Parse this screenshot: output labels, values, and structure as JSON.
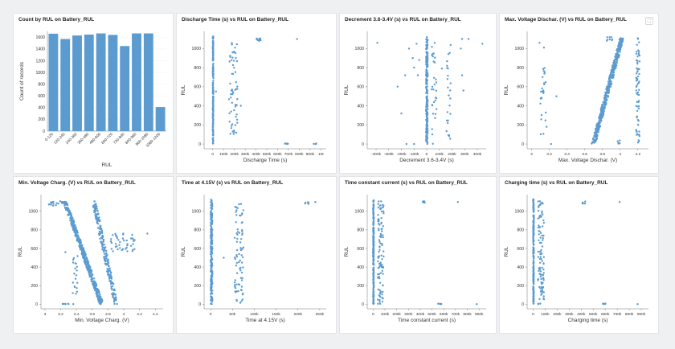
{
  "colors": {
    "mark": "#5b9bd0",
    "bar": "#5b9bd0",
    "axis": "#777777",
    "text": "#333333"
  },
  "ui": {
    "expand_icon": "expand-icon"
  },
  "chart_data": [
    {
      "type": "bar",
      "title": "Count by RUL on Battery_RUL",
      "xlabel": "RUL",
      "ylabel": "Count of records",
      "categories": [
        "0-120",
        "120-240",
        "240-360",
        "360-480",
        "480-600",
        "600-720",
        "720-840",
        "840-960",
        "960-1080",
        "1080-1200"
      ],
      "values": [
        1660,
        1570,
        1630,
        1645,
        1665,
        1640,
        1450,
        1665,
        1665,
        410
      ],
      "ylim": [
        0,
        1700
      ],
      "yticks": [
        0,
        200,
        400,
        600,
        800,
        1000,
        1200,
        1400,
        1600
      ]
    },
    {
      "type": "scatter",
      "title": "Discharge Time (s) vs RUL on Battery_RUL",
      "xlabel": "Discharge Time (s)",
      "ylabel": "RUL",
      "xlim": [
        -80000,
        1050000
      ],
      "ylim": [
        -50,
        1180
      ],
      "xticks": [
        0,
        100000,
        200000,
        300000,
        400000,
        500000,
        600000,
        700000,
        800000,
        900000,
        1000000
      ],
      "xtick_labels": [
        "0",
        "100k",
        "200k",
        "300k",
        "400k",
        "500k",
        "600k",
        "700k",
        "800k",
        "900k",
        "1M"
      ],
      "yticks": [
        0,
        200,
        400,
        600,
        800,
        1000
      ],
      "clusters": [
        {
          "x": [
            0,
            6000
          ],
          "y": [
            0,
            1130
          ],
          "n": 200
        },
        {
          "x": [
            150000,
            230000
          ],
          "y": [
            100,
            1080
          ],
          "n": 60
        },
        {
          "x": [
            400000,
            450000
          ],
          "y": [
            1080,
            1110
          ],
          "n": 10
        },
        {
          "x": [
            660000,
            700000
          ],
          "y": [
            0,
            5
          ],
          "n": 6
        },
        {
          "x": [
            930000,
            960000
          ],
          "y": [
            0,
            5
          ],
          "n": 4
        }
      ],
      "points": [
        [
          780000,
          1100
        ],
        [
          30000,
          550
        ],
        [
          260000,
          400
        ],
        [
          170000,
          340
        ]
      ]
    },
    {
      "type": "scatter",
      "title": "Decrement 3.6-3.4V (s) vs RUL on Battery_RUL",
      "xlabel": "Decrement 3.6-3.4V (s)",
      "ylabel": "RUL",
      "xlim": [
        -470000,
        470000
      ],
      "ylim": [
        -50,
        1180
      ],
      "xticks": [
        -400000,
        -300000,
        -200000,
        -100000,
        0,
        100000,
        200000,
        300000,
        400000
      ],
      "xtick_labels": [
        "-400k",
        "-300k",
        "-200k",
        "-100k",
        "0",
        "100k",
        "200k",
        "300k",
        "400k"
      ],
      "yticks": [
        0,
        200,
        400,
        600,
        800,
        1000
      ],
      "clusters": [
        {
          "x": [
            -5000,
            8000
          ],
          "y": [
            0,
            1130
          ],
          "n": 220
        },
        {
          "x": [
            40000,
            80000
          ],
          "y": [
            0,
            1100
          ],
          "n": 30
        },
        {
          "x": [
            150000,
            190000
          ],
          "y": [
            0,
            1100
          ],
          "n": 25
        }
      ],
      "points": [
        [
          -390000,
          1060
        ],
        [
          -140000,
          1000
        ],
        [
          -110000,
          900
        ],
        [
          -100000,
          800
        ],
        [
          -70000,
          720
        ],
        [
          -60000,
          880
        ],
        [
          -80000,
          1050
        ],
        [
          -230000,
          600
        ],
        [
          -200000,
          320
        ],
        [
          -160000,
          0
        ],
        [
          -100000,
          0
        ],
        [
          120000,
          790
        ],
        [
          270000,
          1000
        ],
        [
          280000,
          720
        ],
        [
          290000,
          560
        ],
        [
          330000,
          1100
        ],
        [
          440000,
          1050
        ],
        [
          280000,
          1100
        ],
        [
          -170000,
          720
        ]
      ]
    },
    {
      "type": "scatter",
      "title": "Max. Voltage Dischar. (V) vs RUL on Battery_RUL",
      "xlabel": "Max. Voltage Dischar. (V)",
      "ylabel": "RUL",
      "xlim": [
        2.95,
        4.32
      ],
      "ylim": [
        -50,
        1180
      ],
      "xticks": [
        3,
        3.2,
        3.4,
        3.6,
        3.8,
        4,
        4.2
      ],
      "xtick_labels": [
        "3",
        "3.2",
        "3.4",
        "3.6",
        "3.8",
        "4",
        "4.2"
      ],
      "yticks": [
        0,
        200,
        400,
        600,
        800,
        1000
      ],
      "bands": [
        {
          "x0": 3.7,
          "y0": 0,
          "x1": 4.02,
          "y1": 1110,
          "w": 0.045,
          "n": 420
        }
      ],
      "clusters": [
        {
          "x": [
            4.18,
            4.22
          ],
          "y": [
            0,
            1110
          ],
          "n": 70
        },
        {
          "x": [
            3.1,
            3.16
          ],
          "y": [
            100,
            800
          ],
          "n": 25
        },
        {
          "x": [
            3.85,
            3.92
          ],
          "y": [
            1080,
            1120
          ],
          "n": 8
        },
        {
          "x": [
            3.97,
            4.0
          ],
          "y": [
            0,
            40
          ],
          "n": 6
        }
      ],
      "points": [
        [
          3.09,
          1060
        ],
        [
          3.14,
          1010
        ],
        [
          3.22,
          0
        ],
        [
          3.17,
          180
        ],
        [
          3.28,
          500
        ],
        [
          3.16,
          330
        ]
      ]
    },
    {
      "type": "scatter",
      "title": "Min. Voltage Charg. (V) vs RUL on Battery_RUL",
      "xlabel": "Min. Voltage Charg. (V)",
      "ylabel": "RUL",
      "xlim": [
        2.95,
        4.5
      ],
      "ylim": [
        -50,
        1180
      ],
      "xticks": [
        3,
        3.2,
        3.4,
        3.6,
        3.8,
        4,
        4.2,
        4.4
      ],
      "xtick_labels": [
        "3",
        "3.2",
        "3.4",
        "3.6",
        "3.8",
        "4",
        "4.2",
        "4.4"
      ],
      "yticks": [
        0,
        200,
        400,
        600,
        800,
        1000
      ],
      "bands": [
        {
          "x0": 3.25,
          "y0": 1110,
          "x1": 3.72,
          "y1": 0,
          "w": 0.05,
          "n": 430
        },
        {
          "x0": 3.62,
          "y0": 1110,
          "x1": 3.9,
          "y1": 0,
          "w": 0.05,
          "n": 200
        }
      ],
      "clusters": [
        {
          "x": [
            3.05,
            3.25
          ],
          "y": [
            1060,
            1110
          ],
          "n": 20
        },
        {
          "x": [
            3.82,
            4.15
          ],
          "y": [
            560,
            760
          ],
          "n": 40
        },
        {
          "x": [
            3.35,
            3.42
          ],
          "y": [
            100,
            520
          ],
          "n": 20
        },
        {
          "x": [
            3.22,
            3.3
          ],
          "y": [
            0,
            5
          ],
          "n": 6
        }
      ],
      "points": [
        [
          4.3,
          760
        ],
        [
          3.9,
          650
        ],
        [
          4.12,
          700
        ],
        [
          3.26,
          560
        ],
        [
          3.45,
          590
        ],
        [
          3.36,
          0
        ]
      ]
    },
    {
      "type": "scatter",
      "title": "Time at 4.15V (s) vs RUL on Battery_RUL",
      "xlabel": "Time at 4.15V (s)",
      "ylabel": "RUL",
      "xlim": [
        -15000,
        265000
      ],
      "ylim": [
        -50,
        1180
      ],
      "xticks": [
        0,
        50000,
        100000,
        150000,
        200000,
        250000
      ],
      "xtick_labels": [
        "0",
        "50k",
        "100k",
        "150k",
        "200k",
        "250k"
      ],
      "yticks": [
        0,
        200,
        400,
        600,
        800,
        1000
      ],
      "clusters": [
        {
          "x": [
            0,
            4000
          ],
          "y": [
            0,
            1130
          ],
          "n": 220
        },
        {
          "x": [
            55000,
            75000
          ],
          "y": [
            0,
            1080
          ],
          "n": 80
        },
        {
          "x": [
            215000,
            225000
          ],
          "y": [
            1080,
            1110
          ],
          "n": 6
        }
      ],
      "points": [
        [
          240000,
          1100
        ],
        [
          30000,
          500
        ]
      ]
    },
    {
      "type": "scatter",
      "title": "Time constant current (s) vs RUL on Battery_RUL",
      "xlabel": "Time constant current (s)",
      "ylabel": "RUL",
      "xlim": [
        -50000,
        960000
      ],
      "ylim": [
        -50,
        1180
      ],
      "xticks": [
        0,
        100000,
        200000,
        300000,
        400000,
        500000,
        600000,
        700000,
        800000,
        900000
      ],
      "xtick_labels": [
        "0",
        "100k",
        "200k",
        "300k",
        "400k",
        "500k",
        "600k",
        "700k",
        "800k",
        "900k"
      ],
      "yticks": [
        0,
        200,
        400,
        600,
        800,
        1000
      ],
      "clusters": [
        {
          "x": [
            0,
            6000
          ],
          "y": [
            0,
            1130
          ],
          "n": 220
        },
        {
          "x": [
            40000,
            90000
          ],
          "y": [
            0,
            1110
          ],
          "n": 100
        },
        {
          "x": [
            420000,
            440000
          ],
          "y": [
            1080,
            1110
          ],
          "n": 6
        },
        {
          "x": [
            550000,
            580000
          ],
          "y": [
            0,
            5
          ],
          "n": 6
        }
      ],
      "points": [
        [
          720000,
          1100
        ],
        [
          880000,
          0
        ]
      ]
    },
    {
      "type": "scatter",
      "title": "Charging time (s) vs RUL on Battery_RUL",
      "xlabel": "Charging time (s)",
      "ylabel": "RUL",
      "xlim": [
        -50000,
        960000
      ],
      "ylim": [
        -50,
        1180
      ],
      "xticks": [
        0,
        100000,
        200000,
        300000,
        400000,
        500000,
        600000,
        700000,
        800000,
        900000
      ],
      "xtick_labels": [
        "0",
        "100k",
        "200k",
        "300k",
        "400k",
        "500k",
        "600k",
        "700k",
        "800k",
        "900k"
      ],
      "yticks": [
        0,
        200,
        400,
        600,
        800,
        1000
      ],
      "clusters": [
        {
          "x": [
            0,
            6000
          ],
          "y": [
            0,
            1130
          ],
          "n": 220
        },
        {
          "x": [
            40000,
            90000
          ],
          "y": [
            0,
            1110
          ],
          "n": 100
        },
        {
          "x": [
            410000,
            440000
          ],
          "y": [
            1080,
            1110
          ],
          "n": 6
        },
        {
          "x": [
            580000,
            610000
          ],
          "y": [
            0,
            5
          ],
          "n": 6
        }
      ],
      "points": [
        [
          720000,
          1100
        ],
        [
          870000,
          0
        ]
      ]
    }
  ]
}
